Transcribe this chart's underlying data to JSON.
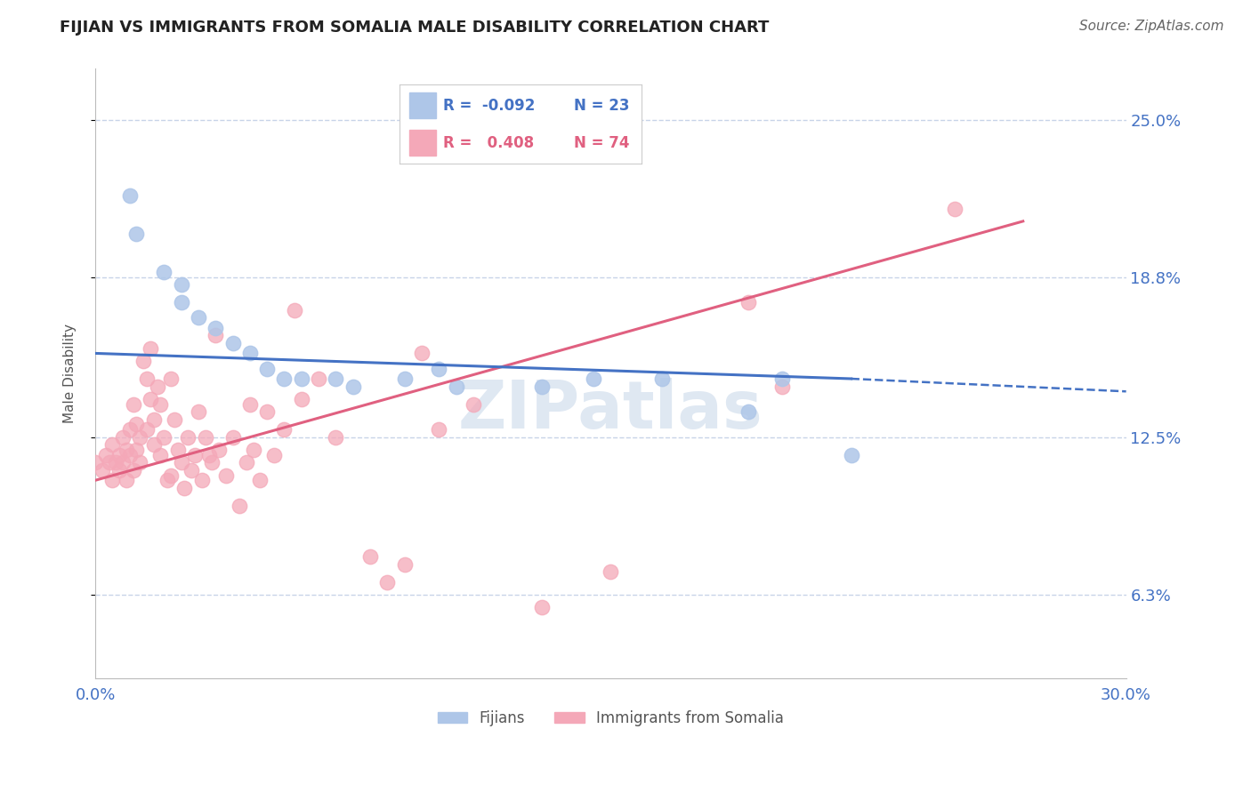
{
  "title": "FIJIAN VS IMMIGRANTS FROM SOMALIA MALE DISABILITY CORRELATION CHART",
  "source": "Source: ZipAtlas.com",
  "ylabel": "Male Disability",
  "xlim": [
    0.0,
    0.3
  ],
  "ylim": [
    0.03,
    0.27
  ],
  "yticks": [
    0.063,
    0.125,
    0.188,
    0.25
  ],
  "ytick_labels": [
    "6.3%",
    "12.5%",
    "18.8%",
    "25.0%"
  ],
  "xtick_labels_show": [
    "0.0%",
    "30.0%"
  ],
  "fijian_R": -0.092,
  "fijian_N": 23,
  "somalia_R": 0.408,
  "somalia_N": 74,
  "fijian_color": "#aec6e8",
  "somalia_color": "#f4a8b8",
  "fijian_line_color": "#4472c4",
  "somalia_line_color": "#e06080",
  "background_color": "#ffffff",
  "grid_color": "#c8d4e8",
  "title_color": "#222222",
  "axis_label_color": "#555555",
  "tick_label_color": "#4472c4",
  "source_color": "#666666",
  "watermark": "ZIPatlas",
  "fijian_line": {
    "x0": 0.0,
    "y0": 0.158,
    "x1": 0.22,
    "y1": 0.148,
    "xdash_end": 0.3,
    "ydash_end": 0.143
  },
  "somalia_line": {
    "x0": 0.0,
    "y0": 0.108,
    "x1": 0.27,
    "y1": 0.21
  },
  "fijian_points": [
    [
      0.01,
      0.22
    ],
    [
      0.012,
      0.205
    ],
    [
      0.02,
      0.19
    ],
    [
      0.025,
      0.185
    ],
    [
      0.025,
      0.178
    ],
    [
      0.03,
      0.172
    ],
    [
      0.035,
      0.168
    ],
    [
      0.04,
      0.162
    ],
    [
      0.045,
      0.158
    ],
    [
      0.05,
      0.152
    ],
    [
      0.055,
      0.148
    ],
    [
      0.06,
      0.148
    ],
    [
      0.07,
      0.148
    ],
    [
      0.075,
      0.145
    ],
    [
      0.09,
      0.148
    ],
    [
      0.1,
      0.152
    ],
    [
      0.105,
      0.145
    ],
    [
      0.13,
      0.145
    ],
    [
      0.145,
      0.148
    ],
    [
      0.165,
      0.148
    ],
    [
      0.22,
      0.118
    ],
    [
      0.19,
      0.135
    ],
    [
      0.2,
      0.148
    ]
  ],
  "somalia_points": [
    [
      0.0,
      0.115
    ],
    [
      0.002,
      0.112
    ],
    [
      0.003,
      0.118
    ],
    [
      0.004,
      0.115
    ],
    [
      0.005,
      0.122
    ],
    [
      0.005,
      0.108
    ],
    [
      0.006,
      0.115
    ],
    [
      0.007,
      0.112
    ],
    [
      0.007,
      0.118
    ],
    [
      0.008,
      0.125
    ],
    [
      0.008,
      0.115
    ],
    [
      0.009,
      0.12
    ],
    [
      0.009,
      0.108
    ],
    [
      0.01,
      0.118
    ],
    [
      0.01,
      0.128
    ],
    [
      0.011,
      0.112
    ],
    [
      0.011,
      0.138
    ],
    [
      0.012,
      0.12
    ],
    [
      0.012,
      0.13
    ],
    [
      0.013,
      0.115
    ],
    [
      0.013,
      0.125
    ],
    [
      0.014,
      0.155
    ],
    [
      0.015,
      0.148
    ],
    [
      0.015,
      0.128
    ],
    [
      0.016,
      0.14
    ],
    [
      0.016,
      0.16
    ],
    [
      0.017,
      0.132
    ],
    [
      0.017,
      0.122
    ],
    [
      0.018,
      0.145
    ],
    [
      0.019,
      0.138
    ],
    [
      0.019,
      0.118
    ],
    [
      0.02,
      0.125
    ],
    [
      0.021,
      0.108
    ],
    [
      0.022,
      0.148
    ],
    [
      0.022,
      0.11
    ],
    [
      0.023,
      0.132
    ],
    [
      0.024,
      0.12
    ],
    [
      0.025,
      0.115
    ],
    [
      0.026,
      0.105
    ],
    [
      0.027,
      0.125
    ],
    [
      0.028,
      0.112
    ],
    [
      0.029,
      0.118
    ],
    [
      0.03,
      0.135
    ],
    [
      0.031,
      0.108
    ],
    [
      0.032,
      0.125
    ],
    [
      0.033,
      0.118
    ],
    [
      0.034,
      0.115
    ],
    [
      0.035,
      0.165
    ],
    [
      0.036,
      0.12
    ],
    [
      0.038,
      0.11
    ],
    [
      0.04,
      0.125
    ],
    [
      0.042,
      0.098
    ],
    [
      0.044,
      0.115
    ],
    [
      0.046,
      0.12
    ],
    [
      0.048,
      0.108
    ],
    [
      0.05,
      0.135
    ],
    [
      0.052,
      0.118
    ],
    [
      0.055,
      0.128
    ],
    [
      0.058,
      0.175
    ],
    [
      0.06,
      0.14
    ],
    [
      0.065,
      0.148
    ],
    [
      0.07,
      0.125
    ],
    [
      0.08,
      0.078
    ],
    [
      0.085,
      0.068
    ],
    [
      0.09,
      0.075
    ],
    [
      0.095,
      0.158
    ],
    [
      0.1,
      0.128
    ],
    [
      0.11,
      0.138
    ],
    [
      0.13,
      0.058
    ],
    [
      0.15,
      0.072
    ],
    [
      0.19,
      0.178
    ],
    [
      0.2,
      0.145
    ],
    [
      0.25,
      0.215
    ],
    [
      0.045,
      0.138
    ]
  ]
}
